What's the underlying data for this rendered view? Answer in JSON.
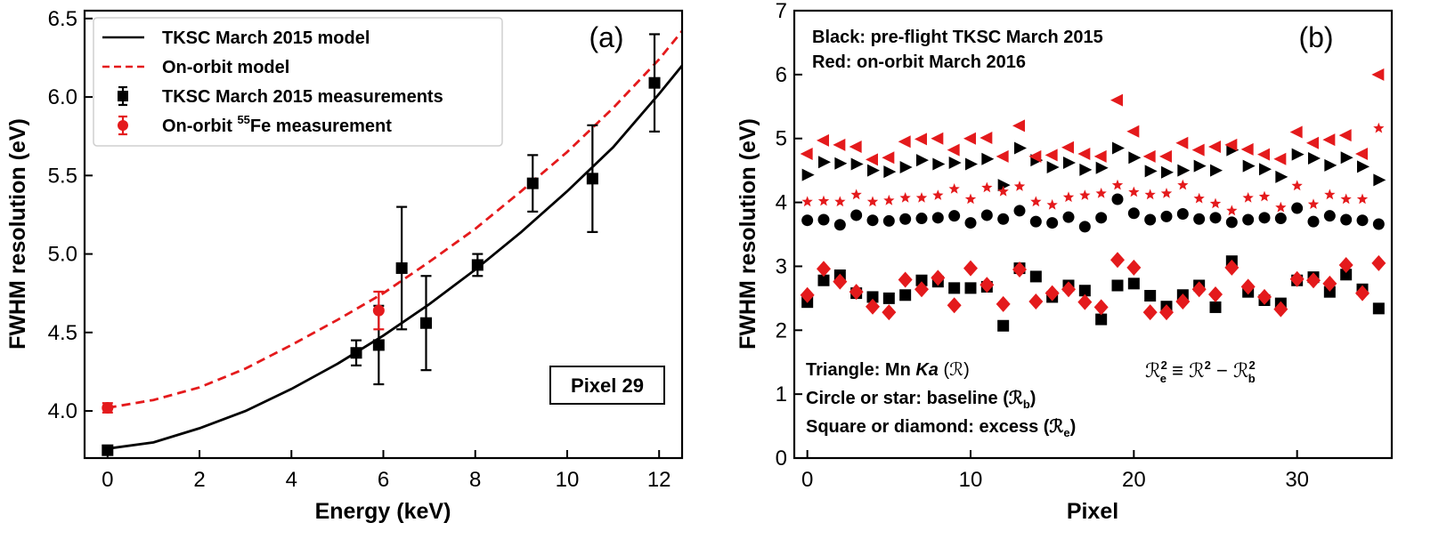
{
  "chart_data": [
    {
      "type": "line",
      "panel_label": "(a)",
      "xlabel": "Energy (keV)",
      "ylabel": "FWHM resolution (eV)",
      "xlim": [
        -0.5,
        12.5
      ],
      "ylim": [
        3.7,
        6.55
      ],
      "xticks": [
        0,
        2,
        4,
        6,
        8,
        10,
        12
      ],
      "yticks": [
        4.0,
        4.5,
        5.0,
        5.5,
        6.0,
        6.5
      ],
      "ytick_labels": [
        "4.0",
        "4.5",
        "5.0",
        "5.5",
        "6.0",
        "6.5"
      ],
      "legend": {
        "position": "top-left",
        "entries": [
          {
            "label": "TKSC March 2015 model"
          },
          {
            "label": "On-orbit model"
          },
          {
            "label": "TKSC March 2015 measurements"
          },
          {
            "label_pre": "On-orbit ",
            "label_sup": "55",
            "label_post": "Fe measurement"
          }
        ]
      },
      "annotation": "Pixel 29",
      "series": [
        {
          "name": "TKSC March 2015 model",
          "kind": "line",
          "color": "#000000",
          "dash": "solid",
          "x": [
            0,
            1,
            2,
            3,
            4,
            5,
            6,
            7,
            8,
            9,
            10,
            11,
            12,
            12.5
          ],
          "y": [
            3.76,
            3.8,
            3.89,
            4.0,
            4.14,
            4.3,
            4.48,
            4.68,
            4.9,
            5.14,
            5.4,
            5.68,
            6.02,
            6.2
          ]
        },
        {
          "name": "On-orbit model",
          "kind": "line",
          "color": "#e41a1c",
          "dash": "dashed",
          "x": [
            0,
            1,
            2,
            3,
            4,
            5,
            6,
            7,
            8,
            9,
            10,
            11,
            12,
            12.5
          ],
          "y": [
            4.02,
            4.07,
            4.15,
            4.27,
            4.42,
            4.58,
            4.75,
            4.95,
            5.16,
            5.4,
            5.65,
            5.93,
            6.24,
            6.42
          ]
        },
        {
          "name": "TKSC March 2015 measurements",
          "kind": "scatter",
          "color": "#000000",
          "marker": "square",
          "x": [
            0,
            5.41,
            5.9,
            6.4,
            6.93,
            8.05,
            9.25,
            10.55,
            11.9
          ],
          "y": [
            3.75,
            4.37,
            4.42,
            4.91,
            4.56,
            4.93,
            5.45,
            5.48,
            6.09
          ],
          "err": [
            0.0,
            0.08,
            0.25,
            0.39,
            0.3,
            0.07,
            0.18,
            0.34,
            0.31
          ]
        },
        {
          "name": "On-orbit 55Fe measurement",
          "kind": "scatter",
          "color": "#e41a1c",
          "marker": "circle",
          "x": [
            0,
            5.9
          ],
          "y": [
            4.02,
            4.64
          ],
          "err": [
            0.03,
            0.12
          ]
        }
      ]
    },
    {
      "type": "scatter",
      "panel_label": "(b)",
      "xlabel": "Pixel",
      "ylabel": "FWHM resolution (eV)",
      "xlim": [
        -0.8,
        35.8
      ],
      "ylim": [
        0,
        7
      ],
      "xticks": [
        0,
        10,
        20,
        30
      ],
      "yticks": [
        0,
        1,
        2,
        3,
        4,
        5,
        6,
        7
      ],
      "notes_top": [
        "Black: pre-flight TKSC March 2015",
        "Red: on-orbit March 2016"
      ],
      "notes_bottom": [
        {
          "pre": "Triangle: Mn ",
          "italic": "Ka",
          "post": " (ℛ)"
        },
        {
          "pre": "Circle or star: baseline (ℛ",
          "sub": "b",
          "post": ")"
        },
        {
          "pre": "Square or diamond: excess (ℛ",
          "sub": "e",
          "post": ")"
        }
      ],
      "equation": {
        "lhs": "ℛ",
        "lhs_sup": "2",
        "lhs_sub": "e",
        "op": " ≡ ℛ",
        "mid_sup": "2",
        "minus": " − ℛ",
        "rhs_sup": "2",
        "rhs_sub": "b"
      },
      "series": [
        {
          "name": "pre-flight Mn Ka",
          "marker": "triangle-right",
          "color": "#000000",
          "y": [
            4.43,
            4.63,
            4.61,
            4.6,
            4.5,
            4.48,
            4.55,
            4.66,
            4.6,
            4.62,
            4.6,
            4.68,
            4.27,
            4.85,
            4.66,
            4.55,
            4.62,
            4.51,
            4.54,
            4.85,
            4.7,
            4.49,
            4.47,
            4.5,
            4.57,
            4.5,
            4.82,
            4.57,
            4.52,
            4.4,
            4.75,
            4.69,
            4.58,
            4.7,
            4.56,
            4.35
          ]
        },
        {
          "name": "on-orbit Mn Ka",
          "marker": "triangle-left",
          "color": "#e41a1c",
          "y": [
            4.76,
            4.97,
            4.9,
            4.87,
            4.67,
            4.7,
            4.95,
            4.99,
            5.0,
            4.82,
            5.0,
            5.01,
            4.72,
            5.2,
            4.72,
            4.74,
            4.86,
            4.76,
            4.72,
            5.6,
            5.11,
            4.72,
            4.72,
            4.93,
            4.82,
            4.87,
            4.9,
            4.83,
            4.75,
            4.68,
            5.1,
            4.93,
            4.98,
            5.05,
            4.76,
            6.0
          ]
        },
        {
          "name": "pre-flight baseline",
          "marker": "circle",
          "color": "#000000",
          "y": [
            3.72,
            3.73,
            3.65,
            3.8,
            3.72,
            3.71,
            3.74,
            3.75,
            3.76,
            3.79,
            3.68,
            3.8,
            3.74,
            3.87,
            3.7,
            3.68,
            3.77,
            3.62,
            3.76,
            4.05,
            3.83,
            3.73,
            3.78,
            3.82,
            3.74,
            3.76,
            3.69,
            3.73,
            3.76,
            3.75,
            3.91,
            3.7,
            3.79,
            3.73,
            3.72,
            3.66
          ]
        },
        {
          "name": "on-orbit baseline",
          "marker": "star",
          "color": "#e41a1c",
          "y": [
            4.01,
            4.02,
            4.01,
            4.12,
            4.01,
            4.03,
            4.07,
            4.07,
            4.11,
            4.21,
            4.05,
            4.23,
            4.17,
            4.25,
            4.01,
            3.96,
            4.08,
            4.11,
            4.14,
            4.27,
            4.16,
            4.12,
            4.14,
            4.27,
            4.06,
            3.98,
            3.87,
            4.07,
            4.09,
            3.92,
            4.26,
            3.97,
            4.12,
            4.05,
            4.05,
            5.16
          ]
        },
        {
          "name": "pre-flight excess",
          "marker": "square",
          "color": "#000000",
          "y": [
            2.44,
            2.78,
            2.86,
            2.58,
            2.52,
            2.5,
            2.55,
            2.78,
            2.76,
            2.66,
            2.66,
            2.68,
            2.07,
            2.97,
            2.84,
            2.52,
            2.7,
            2.62,
            2.17,
            2.7,
            2.73,
            2.54,
            2.37,
            2.55,
            2.7,
            2.36,
            3.08,
            2.6,
            2.47,
            2.42,
            2.78,
            2.83,
            2.6,
            2.87,
            2.64,
            2.34
          ]
        },
        {
          "name": "on-orbit excess",
          "marker": "diamond",
          "color": "#e41a1c",
          "y": [
            2.55,
            2.96,
            2.76,
            2.6,
            2.37,
            2.28,
            2.79,
            2.64,
            2.82,
            2.39,
            2.97,
            2.71,
            2.41,
            2.95,
            2.45,
            2.58,
            2.64,
            2.44,
            2.36,
            3.1,
            2.98,
            2.28,
            2.28,
            2.45,
            2.64,
            2.56,
            2.98,
            2.68,
            2.52,
            2.33,
            2.8,
            2.78,
            2.73,
            3.02,
            2.58,
            3.05
          ]
        }
      ]
    }
  ]
}
